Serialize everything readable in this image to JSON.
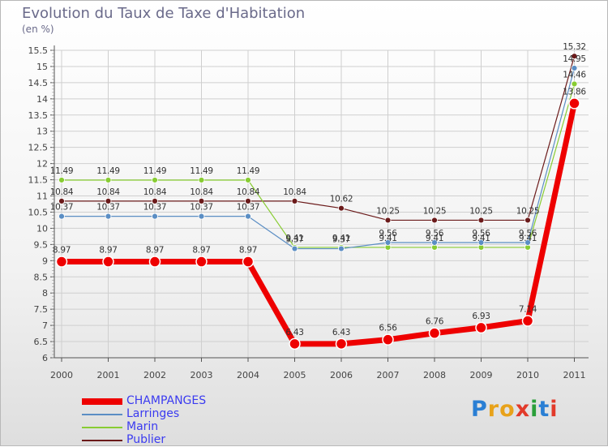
{
  "title": "Evolution du Taux de Taxe d'Habitation",
  "unit_label": "(en %)",
  "brand": "Proxiti",
  "colors": {
    "title": "#6a6a8a",
    "grid": "#cfcfcf",
    "axis": "#555555",
    "label": "#444444"
  },
  "chart_data": {
    "type": "line",
    "title": "Evolution du Taux de Taxe d'Habitation",
    "ylabel": "(en %)",
    "xlabel": "",
    "ylim": [
      6,
      15.5
    ],
    "yticks": [
      "6",
      "6.5",
      "7",
      "7.5",
      "8",
      "8.5",
      "9",
      "9.5",
      "10",
      "10.5",
      "11",
      "11.5",
      "12",
      "12.5",
      "13",
      "13.5",
      "14",
      "14.5",
      "15",
      "15.5"
    ],
    "categories": [
      "2000",
      "2001",
      "2002",
      "2003",
      "2004",
      "2005",
      "2006",
      "2007",
      "2008",
      "2009",
      "2010",
      "2011"
    ],
    "grid": true,
    "legend_position": "bottom-left",
    "series": [
      {
        "name": "Publier",
        "color": "#6b1a1a",
        "width": 1.2,
        "marker": 3.5,
        "labelColor": "#333333",
        "values": [
          10.84,
          10.84,
          10.84,
          10.84,
          10.84,
          10.84,
          10.62,
          10.25,
          10.25,
          10.25,
          10.25,
          15.32
        ],
        "labels": [
          "10.84",
          "10.84",
          "10.84",
          "10.84",
          "10.84",
          "10.84",
          "10.62",
          "10.25",
          "10.25",
          "10.25",
          "10.25",
          "15.32"
        ]
      },
      {
        "name": "Marin",
        "color": "#88cc33",
        "width": 1.2,
        "marker": 3.5,
        "labelColor": "#333333",
        "values": [
          11.49,
          11.49,
          11.49,
          11.49,
          11.49,
          9.41,
          9.41,
          9.41,
          9.41,
          9.41,
          9.41,
          14.46
        ],
        "labels": [
          "11.49",
          "11.49",
          "11.49",
          "11.49",
          "11.49",
          "9.41",
          "9.41",
          "9.41",
          "9.41",
          "9.41",
          "9.41",
          "14.46"
        ]
      },
      {
        "name": "Larringes",
        "color": "#5b8ec4",
        "width": 1.2,
        "marker": 3.5,
        "labelColor": "#333333",
        "values": [
          10.37,
          10.37,
          10.37,
          10.37,
          10.37,
          9.37,
          9.37,
          9.56,
          9.56,
          9.56,
          9.56,
          14.95
        ],
        "labels": [
          "10.37",
          "10.37",
          "10.37",
          "10.37",
          "10.37",
          "9.37",
          "9.37",
          "9.56",
          "9.56",
          "9.56",
          "9.56",
          "14.95"
        ]
      },
      {
        "name": "CHAMPANGES",
        "color": "#ee0000",
        "width": 7,
        "marker": 6.5,
        "labelColor": "#333333",
        "values": [
          8.97,
          8.97,
          8.97,
          8.97,
          8.97,
          6.43,
          6.43,
          6.56,
          6.76,
          6.93,
          7.14,
          13.86
        ],
        "labels": [
          "8.97",
          "8.97",
          "8.97",
          "8.97",
          "8.97",
          "6.43",
          "6.43",
          "6.56",
          "6.76",
          "6.93",
          "7.14",
          "13.86"
        ]
      }
    ]
  },
  "legend": [
    {
      "label": "CHAMPANGES",
      "color": "#ee0000",
      "text_color": "#3b3bf0",
      "weight": "thick"
    },
    {
      "label": "Larringes",
      "color": "#5b8ec4",
      "text_color": "#3b3bf0",
      "weight": "thin"
    },
    {
      "label": "Marin",
      "color": "#88cc33",
      "text_color": "#3b3bf0",
      "weight": "thin"
    },
    {
      "label": "Publier",
      "color": "#6b1a1a",
      "text_color": "#3b3bf0",
      "weight": "thin"
    }
  ]
}
